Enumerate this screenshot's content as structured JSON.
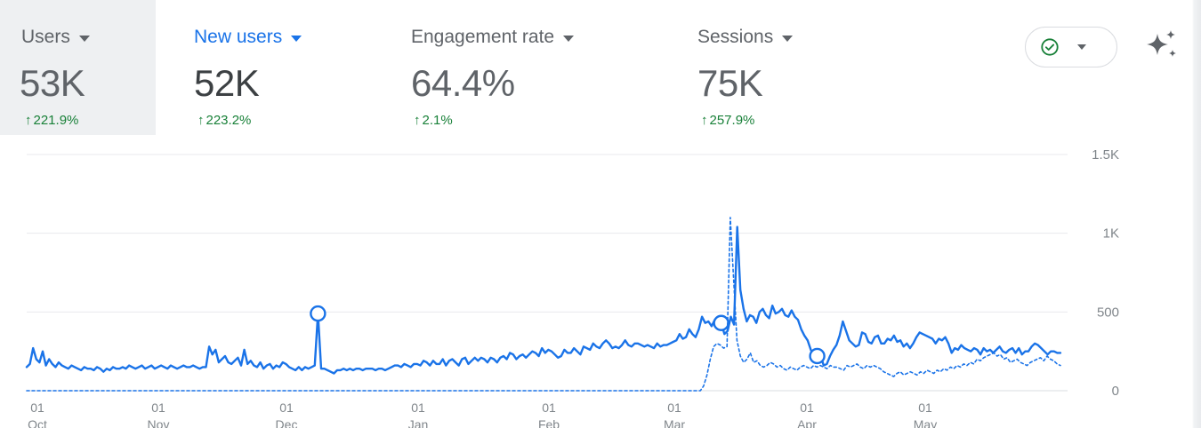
{
  "metrics": [
    {
      "label": "Users",
      "value": "53K",
      "delta": "221.9%"
    },
    {
      "label": "New users",
      "value": "52K",
      "delta": "223.2%"
    },
    {
      "label": "Engagement rate",
      "value": "64.4%",
      "delta": "2.1%"
    },
    {
      "label": "Sessions",
      "value": "75K",
      "delta": "257.9%"
    }
  ],
  "icons": {
    "status": "check-circle-icon",
    "insights": "sparkle-icon",
    "delta": "arrow-up-icon"
  },
  "colors": {
    "accent": "#1a73e8",
    "positive": "#188038",
    "selected_bg": "#eef0f2",
    "text": "#3c4043",
    "muted": "#5f6368"
  },
  "chart_data": {
    "type": "line",
    "ylim": [
      0,
      1500
    ],
    "y_ticks": [
      "0",
      "500",
      "1K",
      "1.5K"
    ],
    "x_ticks": [
      {
        "day": "01",
        "month": "Oct"
      },
      {
        "day": "01",
        "month": "Nov"
      },
      {
        "day": "01",
        "month": "Dec"
      },
      {
        "day": "01",
        "month": "Jan"
      },
      {
        "day": "01",
        "month": "Feb"
      },
      {
        "day": "01",
        "month": "Mar"
      },
      {
        "day": "01",
        "month": "Apr"
      },
      {
        "day": "01",
        "month": "May"
      }
    ],
    "grid": true,
    "series": [
      {
        "style": "solid",
        "values": [
          150,
          170,
          270,
          200,
          180,
          250,
          160,
          200,
          170,
          150,
          180,
          160,
          150,
          140,
          160,
          150,
          140,
          130,
          150,
          140,
          140,
          130,
          150,
          140,
          120,
          140,
          130,
          150,
          140,
          140,
          150,
          140,
          160,
          150,
          140,
          150,
          160,
          140,
          150,
          160,
          140,
          150,
          160,
          150,
          140,
          160,
          150,
          140,
          150,
          160,
          150,
          150,
          160,
          150,
          140,
          150,
          150,
          280,
          230,
          260,
          180,
          200,
          220,
          180,
          170,
          190,
          210,
          160,
          260,
          170,
          190,
          160,
          150,
          180,
          140,
          160,
          170,
          140,
          160,
          150,
          180,
          170,
          150,
          140,
          130,
          150,
          130,
          150,
          140,
          150,
          160,
          490,
          140,
          140,
          130,
          120,
          110,
          130,
          130,
          140,
          130,
          140,
          130,
          140,
          140,
          130,
          140,
          140,
          140,
          130,
          140,
          140,
          130,
          140,
          150,
          160,
          160,
          150,
          170,
          160,
          150,
          170,
          170,
          160,
          190,
          180,
          160,
          190,
          170,
          170,
          200,
          160,
          190,
          200,
          180,
          160,
          200,
          210,
          170,
          190,
          210,
          190,
          210,
          200,
          180,
          210,
          200,
          180,
          210,
          220,
          200,
          240,
          230,
          200,
          220,
          230,
          210,
          230,
          250,
          240,
          220,
          270,
          240,
          260,
          250,
          230,
          210,
          220,
          260,
          240,
          240,
          270,
          250,
          230,
          280,
          270,
          260,
          300,
          280,
          270,
          300,
          320,
          300,
          270,
          280,
          270,
          290,
          320,
          290,
          280,
          300,
          300,
          290,
          280,
          290,
          280,
          270,
          300,
          280,
          290,
          290,
          300,
          310,
          320,
          360,
          330,
          340,
          390,
          360,
          340,
          390,
          470,
          430,
          440,
          410,
          450,
          400,
          430,
          360,
          380,
          470,
          420,
          1040,
          640,
          520,
          440,
          480,
          470,
          430,
          500,
          520,
          480,
          460,
          540,
          490,
          500,
          520,
          480,
          470,
          510,
          470,
          450,
          390,
          350,
          320,
          260,
          220,
          220,
          230,
          160,
          170,
          220,
          260,
          290,
          350,
          440,
          380,
          320,
          300,
          280,
          290,
          370,
          360,
          310,
          300,
          340,
          350,
          300,
          300,
          330,
          320,
          350,
          310,
          320,
          280,
          300,
          270,
          300,
          340,
          370,
          360,
          350,
          340,
          330,
          300,
          330,
          320,
          340,
          300,
          240,
          270,
          260,
          290,
          270,
          260,
          250,
          270,
          260,
          230,
          270,
          250,
          260,
          240,
          260,
          280,
          250,
          240,
          260,
          270,
          240,
          270,
          230,
          250,
          250,
          280,
          300,
          290,
          270,
          250,
          230,
          250,
          250,
          240,
          240
        ],
        "markers": [
          91,
          217,
          247
        ]
      },
      {
        "style": "dashed",
        "values": [
          0,
          0,
          0,
          0,
          0,
          0,
          0,
          0,
          0,
          0,
          0,
          0,
          0,
          0,
          0,
          0,
          0,
          0,
          0,
          0,
          0,
          0,
          0,
          0,
          0,
          0,
          0,
          0,
          0,
          0,
          0,
          0,
          0,
          0,
          0,
          0,
          0,
          0,
          0,
          0,
          0,
          0,
          0,
          0,
          0,
          0,
          0,
          0,
          0,
          0,
          0,
          0,
          0,
          0,
          0,
          0,
          0,
          0,
          0,
          0,
          0,
          0,
          0,
          0,
          0,
          0,
          0,
          0,
          0,
          0,
          0,
          0,
          0,
          0,
          0,
          0,
          0,
          0,
          0,
          0,
          0,
          0,
          0,
          0,
          0,
          0,
          0,
          0,
          0,
          0,
          0,
          0,
          0,
          0,
          0,
          0,
          0,
          0,
          0,
          0,
          0,
          0,
          0,
          0,
          0,
          0,
          0,
          0,
          0,
          0,
          0,
          0,
          0,
          0,
          0,
          0,
          0,
          0,
          0,
          0,
          0,
          0,
          0,
          0,
          0,
          0,
          0,
          0,
          0,
          0,
          0,
          0,
          0,
          0,
          0,
          0,
          0,
          0,
          0,
          0,
          0,
          0,
          0,
          0,
          0,
          0,
          0,
          0,
          0,
          0,
          0,
          0,
          0,
          0,
          0,
          0,
          0,
          0,
          0,
          0,
          0,
          0,
          0,
          0,
          0,
          0,
          0,
          0,
          0,
          0,
          0,
          0,
          0,
          0,
          0,
          0,
          0,
          0,
          0,
          0,
          0,
          0,
          0,
          0,
          0,
          0,
          0,
          0,
          0,
          0,
          0,
          0,
          0,
          0,
          0,
          0,
          0,
          0,
          0,
          0,
          0,
          0,
          0,
          30,
          100,
          200,
          280,
          300,
          290,
          270,
          280,
          1100,
          700,
          320,
          220,
          180,
          200,
          240,
          180,
          190,
          160,
          150,
          160,
          180,
          170,
          150,
          160,
          140,
          130,
          150,
          140,
          130,
          150,
          160,
          150,
          140,
          160,
          150,
          160,
          150,
          140,
          160,
          150,
          150,
          140,
          130,
          160,
          150,
          160,
          170,
          150,
          140,
          160,
          150,
          160,
          150,
          140,
          120,
          110,
          100,
          90,
          110,
          120,
          100,
          110,
          120,
          110,
          100,
          120,
          110,
          130,
          120,
          110,
          130,
          120,
          140,
          130,
          150,
          140,
          160,
          150,
          170,
          160,
          180,
          170,
          200,
          190,
          210,
          220,
          230,
          240,
          220,
          230,
          200,
          210,
          180,
          190,
          200,
          180,
          170,
          160,
          180,
          190,
          200,
          210,
          190,
          220,
          200,
          190,
          170,
          160
        ]
      }
    ]
  }
}
